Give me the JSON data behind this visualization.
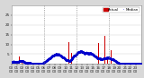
{
  "background_color": "#d8d8d8",
  "plot_bg_color": "#ffffff",
  "bar_color": "#cc0000",
  "median_color": "#0000cc",
  "legend_actual_color": "#cc0000",
  "legend_median_color": "#0000cc",
  "legend_actual_label": "Actual",
  "legend_median_label": "Median",
  "n_minutes": 1440,
  "ylim": [
    0,
    30
  ],
  "tick_label_fontsize": 3.0,
  "dashed_line_x": [
    360,
    720,
    1080
  ],
  "x_tick_interval": 60,
  "figsize": [
    1.6,
    0.87
  ],
  "dpi": 100
}
